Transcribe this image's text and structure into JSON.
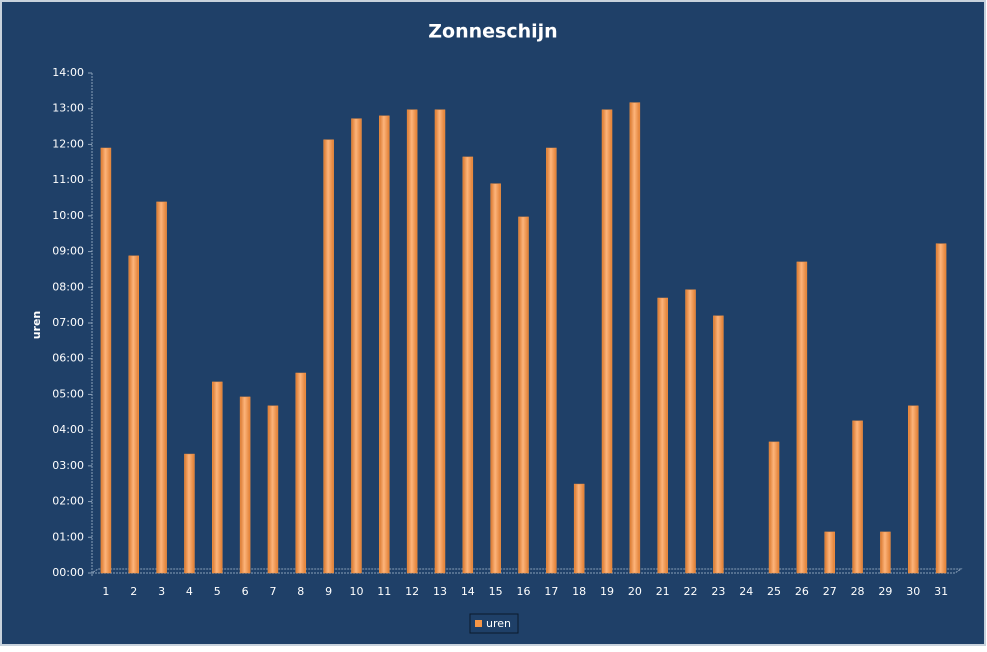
{
  "chart_data": {
    "type": "bar",
    "title": "Zonneschijn",
    "y_label": "uren",
    "categories": [
      "1",
      "2",
      "3",
      "4",
      "5",
      "6",
      "7",
      "8",
      "9",
      "10",
      "11",
      "12",
      "13",
      "14",
      "15",
      "16",
      "17",
      "18",
      "19",
      "20",
      "21",
      "22",
      "23",
      "24",
      "25",
      "26",
      "27",
      "28",
      "29",
      "30",
      "31"
    ],
    "series": [
      {
        "name": "uren",
        "color": "#f79646",
        "values": [
          11.9,
          8.88,
          10.39,
          3.33,
          5.35,
          4.93,
          4.68,
          5.6,
          12.13,
          12.72,
          12.8,
          12.97,
          12.97,
          11.65,
          10.9,
          9.97,
          11.9,
          2.49,
          12.97,
          13.17,
          7.7,
          7.93,
          7.2,
          0,
          3.67,
          8.71,
          1.15,
          4.26,
          1.15,
          4.68,
          9.22
        ]
      }
    ],
    "ylim": [
      0,
      14
    ],
    "yticks": [
      {
        "value": 0,
        "label": "00:00"
      },
      {
        "value": 1,
        "label": "01:00"
      },
      {
        "value": 2,
        "label": "02:00"
      },
      {
        "value": 3,
        "label": "03:00"
      },
      {
        "value": 4,
        "label": "04:00"
      },
      {
        "value": 5,
        "label": "05:00"
      },
      {
        "value": 6,
        "label": "06:00"
      },
      {
        "value": 7,
        "label": "07:00"
      },
      {
        "value": 8,
        "label": "08:00"
      },
      {
        "value": 9,
        "label": "09:00"
      },
      {
        "value": 10,
        "label": "10:00"
      },
      {
        "value": 11,
        "label": "11:00"
      },
      {
        "value": 12,
        "label": "12:00"
      },
      {
        "value": 13,
        "label": "13:00"
      },
      {
        "value": 14,
        "label": "14:00"
      }
    ],
    "legend": "bottom"
  }
}
